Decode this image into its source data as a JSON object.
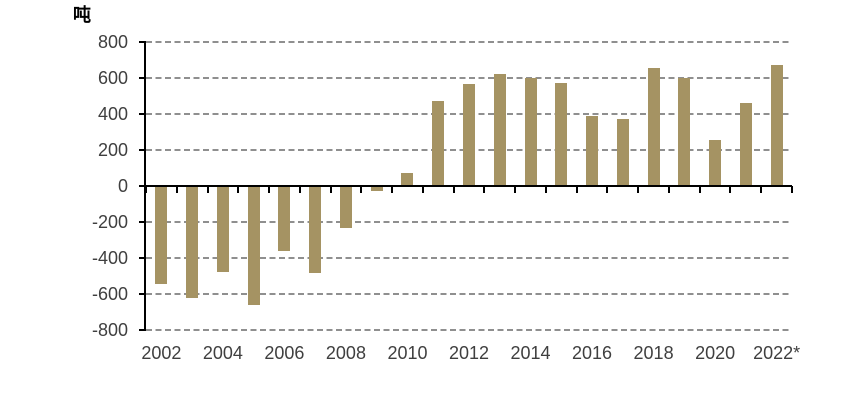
{
  "chart_data": {
    "type": "bar",
    "title": "",
    "ylabel": "吨",
    "categories": [
      "2002",
      "2003",
      "2004",
      "2005",
      "2006",
      "2007",
      "2008",
      "2009",
      "2010",
      "2011",
      "2012",
      "2013",
      "2014",
      "2015",
      "2016",
      "2017",
      "2018",
      "2019",
      "2020",
      "2021",
      "2022*"
    ],
    "values": [
      -545,
      -620,
      -475,
      -660,
      -360,
      -485,
      -235,
      -30,
      75,
      475,
      565,
      625,
      600,
      575,
      390,
      375,
      655,
      600,
      255,
      460,
      670
    ],
    "x_tick_labels": [
      "2002",
      "2004",
      "2006",
      "2008",
      "2010",
      "2012",
      "2014",
      "2016",
      "2018",
      "2020",
      "2022*"
    ],
    "yticks": [
      800,
      600,
      400,
      200,
      0,
      -200,
      -400,
      -600,
      -800
    ],
    "ylim": [
      -800,
      800
    ],
    "grid": "horizontal-dashed",
    "legend": "none",
    "colors": {
      "bar": "#A59363",
      "grid": "#8F8F8F",
      "axis": "#000000",
      "text": "#3F3F3F"
    }
  }
}
